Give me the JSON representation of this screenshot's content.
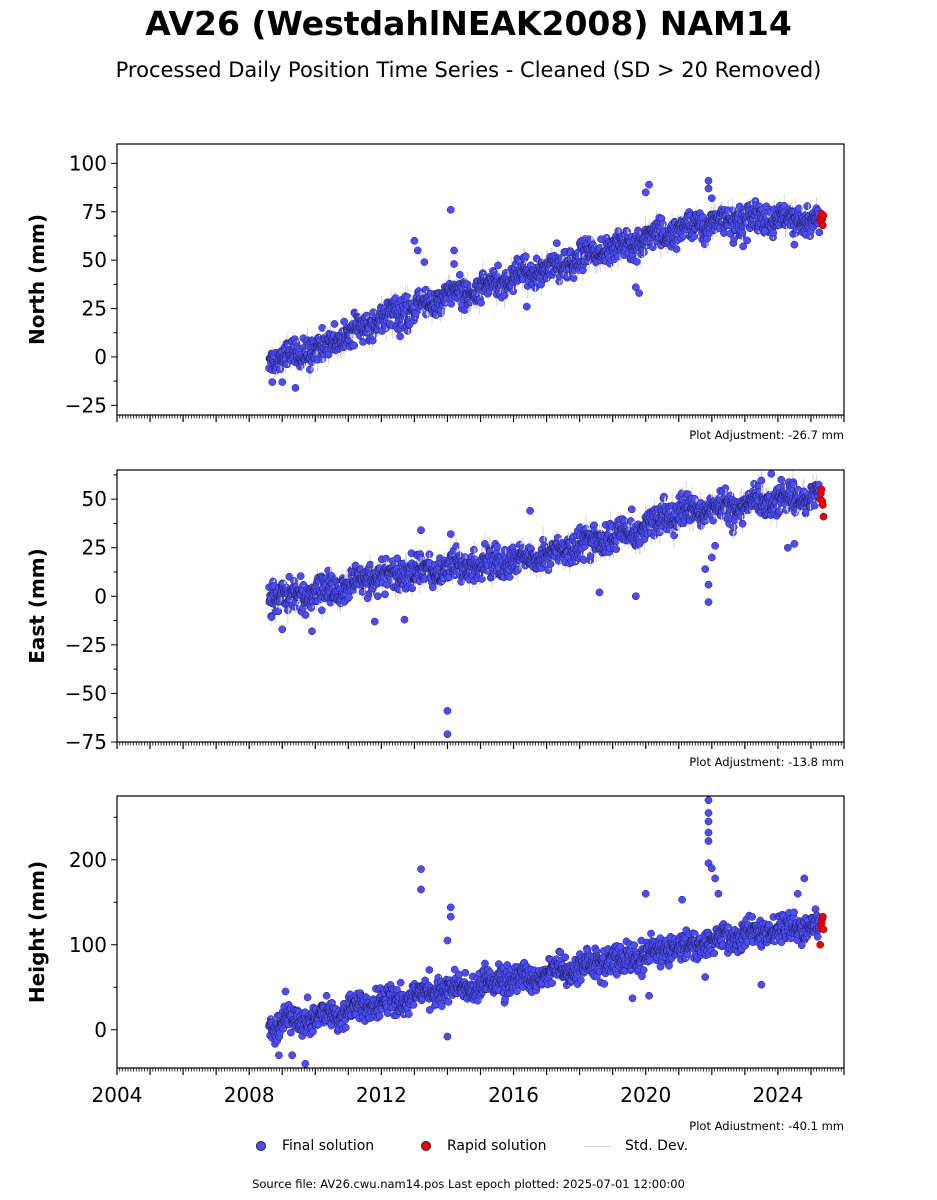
{
  "header": {
    "title": "AV26 (WestdahlNEAK2008) NAM14",
    "subtitle": "Processed Daily Position Time Series - Cleaned (SD > 20 Removed)"
  },
  "colors": {
    "final": "#4d4dff",
    "rapid": "#ee0000",
    "std_dev": "#d6d6d6",
    "outline": "#1a1a40"
  },
  "legend": {
    "final": "Final solution",
    "rapid": "Rapid solution",
    "std": "Std. Dev."
  },
  "footer": {
    "source": "Source file: AV26.cwu.nam14.pos  Last epoch plotted: 2025-07-01 12:00:00"
  },
  "chart_data": [
    {
      "type": "scatter",
      "ylabel": "North (mm)",
      "adjustment": "Plot Adjustment: -26.7 mm",
      "xlim": [
        2004,
        2026
      ],
      "ylim": [
        -30,
        110
      ],
      "yticks": [
        -25,
        0,
        25,
        50,
        75,
        100
      ],
      "ytick_labels": [
        "−25",
        "0",
        "25",
        "50",
        "75",
        "100"
      ],
      "trend": [
        [
          2008.6,
          -1
        ],
        [
          2010,
          3
        ],
        [
          2012,
          20
        ],
        [
          2014,
          31
        ],
        [
          2016,
          40
        ],
        [
          2018,
          51
        ],
        [
          2020,
          61
        ],
        [
          2021.5,
          68
        ],
        [
          2023,
          71
        ],
        [
          2025.4,
          71
        ]
      ],
      "scatter": 5,
      "final_start": 2008.6,
      "final_end": 2025.25,
      "rapid": [
        [
          2025.28,
          70
        ],
        [
          2025.3,
          72
        ],
        [
          2025.32,
          74
        ],
        [
          2025.34,
          71
        ],
        [
          2025.36,
          68
        ],
        [
          2025.38,
          73
        ]
      ],
      "outliers": [
        [
          2013.0,
          60
        ],
        [
          2013.1,
          55
        ],
        [
          2013.3,
          49
        ],
        [
          2014.1,
          76
        ],
        [
          2014.2,
          55
        ],
        [
          2014.2,
          48
        ],
        [
          2009.4,
          -16
        ],
        [
          2009.0,
          -13
        ],
        [
          2020.1,
          89
        ],
        [
          2020.0,
          85
        ],
        [
          2021.9,
          91
        ],
        [
          2021.9,
          87
        ],
        [
          2022.0,
          82
        ],
        [
          2019.7,
          36
        ],
        [
          2019.8,
          33
        ],
        [
          2024.5,
          58
        ],
        [
          2023.6,
          65
        ],
        [
          2016.4,
          26
        ],
        [
          2008.7,
          -13
        ]
      ]
    },
    {
      "type": "scatter",
      "ylabel": "East (mm)",
      "adjustment": "Plot Adjustment: -13.8 mm",
      "xlim": [
        2004,
        2026
      ],
      "ylim": [
        -75,
        65
      ],
      "yticks": [
        -75,
        -50,
        -25,
        0,
        25,
        50
      ],
      "ytick_labels": [
        "−75",
        "−50",
        "−25",
        "0",
        "25",
        "50"
      ],
      "trend": [
        [
          2008.6,
          0
        ],
        [
          2010,
          1
        ],
        [
          2012,
          10
        ],
        [
          2014,
          15
        ],
        [
          2016,
          18
        ],
        [
          2018,
          26
        ],
        [
          2020,
          34
        ],
        [
          2020.5,
          42
        ],
        [
          2022,
          45
        ],
        [
          2024,
          49
        ],
        [
          2025.4,
          52
        ]
      ],
      "scatter": 5,
      "final_start": 2008.6,
      "final_end": 2025.25,
      "rapid": [
        [
          2025.28,
          50
        ],
        [
          2025.3,
          53
        ],
        [
          2025.32,
          55
        ],
        [
          2025.34,
          49
        ],
        [
          2025.36,
          47
        ],
        [
          2025.38,
          41
        ]
      ],
      "outliers": [
        [
          2014.0,
          -59
        ],
        [
          2014.0,
          -71
        ],
        [
          2013.2,
          34
        ],
        [
          2014.1,
          32
        ],
        [
          2016.5,
          44
        ],
        [
          2019.7,
          0
        ],
        [
          2021.9,
          -3
        ],
        [
          2021.9,
          6
        ],
        [
          2021.8,
          14
        ],
        [
          2022.0,
          20
        ],
        [
          2022.1,
          26
        ],
        [
          2018.6,
          2
        ],
        [
          2024.3,
          25
        ],
        [
          2024.5,
          27
        ],
        [
          2023.8,
          63
        ],
        [
          2024.1,
          60
        ],
        [
          2009.9,
          -18
        ],
        [
          2011.8,
          -13
        ],
        [
          2012.7,
          -12
        ],
        [
          2009.0,
          -17
        ]
      ]
    },
    {
      "type": "scatter",
      "ylabel": "Height (mm)",
      "adjustment": "Plot Adjustment: -40.1 mm",
      "xlim": [
        2004,
        2026
      ],
      "ylim": [
        -45,
        275
      ],
      "xticks": [
        2004,
        2008,
        2012,
        2016,
        2020,
        2024
      ],
      "yticks": [
        0,
        100,
        200
      ],
      "ytick_labels": [
        "0",
        "100",
        "200"
      ],
      "trend": [
        [
          2008.6,
          5
        ],
        [
          2010,
          15
        ],
        [
          2012,
          32
        ],
        [
          2014,
          48
        ],
        [
          2016,
          58
        ],
        [
          2018,
          72
        ],
        [
          2020,
          88
        ],
        [
          2022,
          104
        ],
        [
          2024,
          118
        ],
        [
          2025.4,
          122
        ]
      ],
      "scatter": 11,
      "final_start": 2008.6,
      "final_end": 2025.25,
      "rapid": [
        [
          2025.28,
          100
        ],
        [
          2025.3,
          120
        ],
        [
          2025.32,
          125
        ],
        [
          2025.34,
          130
        ],
        [
          2025.36,
          133
        ],
        [
          2025.38,
          118
        ]
      ],
      "outliers": [
        [
          2013.2,
          189
        ],
        [
          2013.2,
          165
        ],
        [
          2014.1,
          144
        ],
        [
          2014.1,
          133
        ],
        [
          2014.0,
          105
        ],
        [
          2014.0,
          -8
        ],
        [
          2021.9,
          270
        ],
        [
          2021.9,
          255
        ],
        [
          2021.9,
          245
        ],
        [
          2021.9,
          232
        ],
        [
          2021.9,
          222
        ],
        [
          2021.9,
          196
        ],
        [
          2022.0,
          190
        ],
        [
          2022.1,
          178
        ],
        [
          2022.2,
          160
        ],
        [
          2020.0,
          160
        ],
        [
          2021.1,
          153
        ],
        [
          2024.6,
          160
        ],
        [
          2024.8,
          178
        ],
        [
          2023.5,
          53
        ],
        [
          2009.7,
          -40
        ],
        [
          2009.1,
          45
        ],
        [
          2021.8,
          62
        ],
        [
          2019.6,
          37
        ],
        [
          2020.1,
          40
        ],
        [
          2009.3,
          -30
        ],
        [
          2008.9,
          -30
        ]
      ]
    }
  ]
}
